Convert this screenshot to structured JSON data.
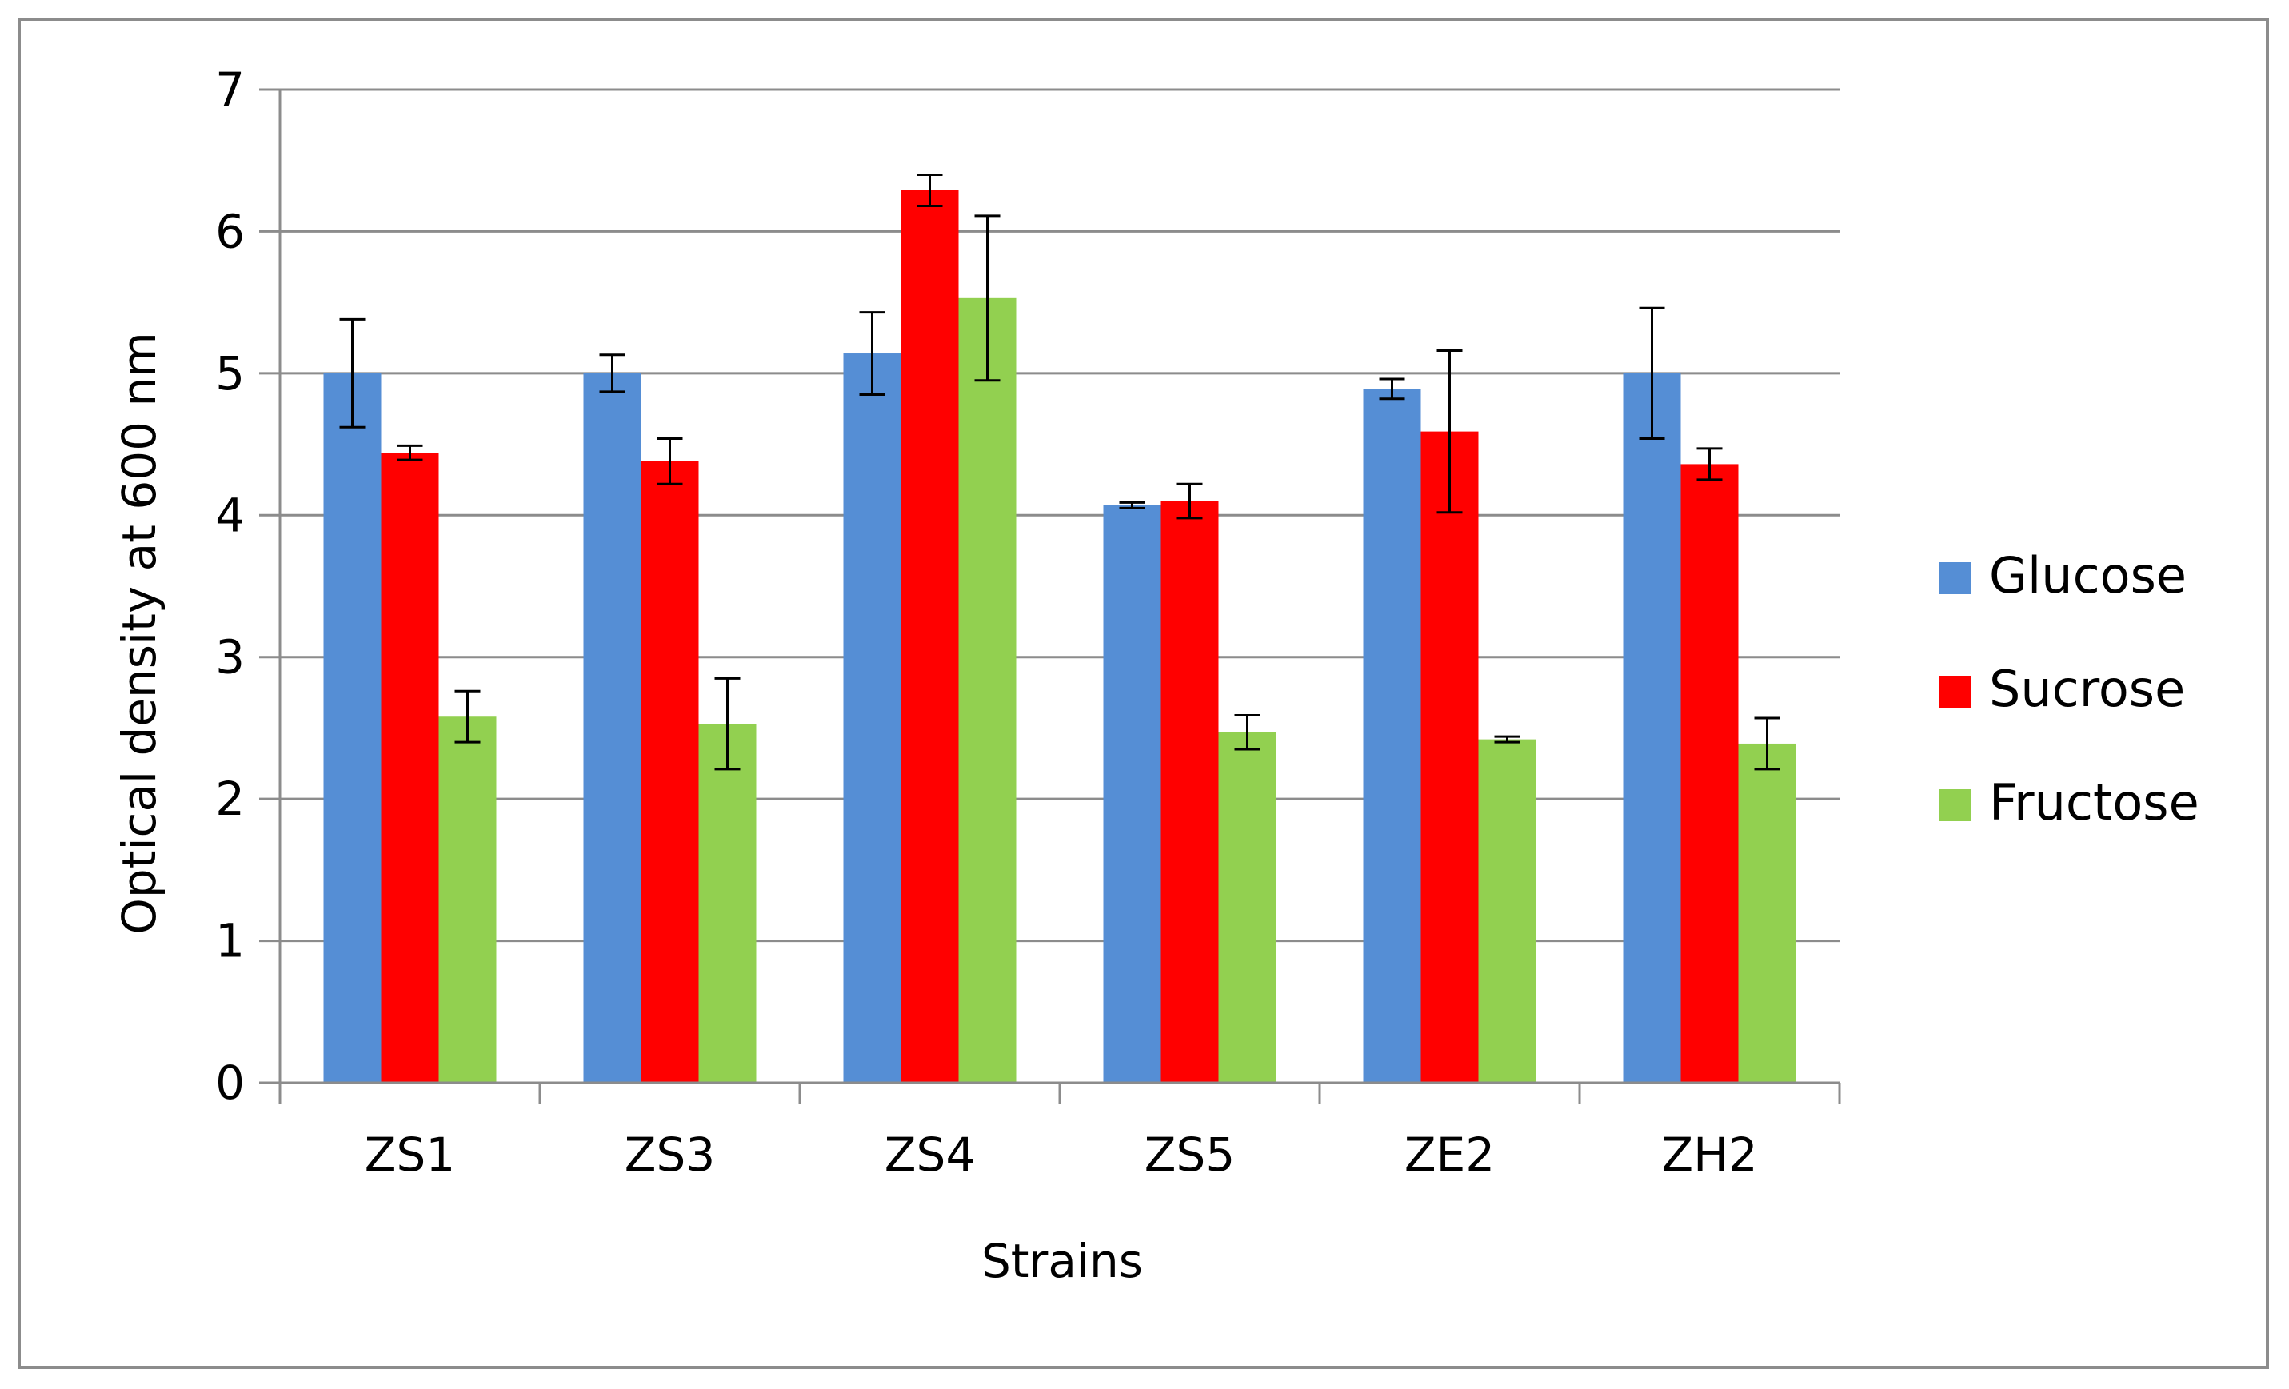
{
  "chart_data": {
    "type": "bar",
    "title": "",
    "xlabel": "Strains",
    "ylabel": "Optical density at 600 nm",
    "categories": [
      "ZS1",
      "ZS3",
      "ZS4",
      "ZS5",
      "ZE2",
      "ZH2"
    ],
    "series": [
      {
        "name": "Glucose",
        "color": "#558ED5",
        "values": [
          5.0,
          5.0,
          5.14,
          4.07,
          4.89,
          5.0
        ],
        "errors": [
          0.38,
          0.13,
          0.29,
          0.02,
          0.07,
          0.46
        ]
      },
      {
        "name": "Sucrose",
        "color": "#FF0000",
        "values": [
          4.44,
          4.38,
          6.29,
          4.1,
          4.59,
          4.36
        ],
        "errors": [
          0.05,
          0.16,
          0.11,
          0.12,
          0.57,
          0.11
        ]
      },
      {
        "name": "Fructose",
        "color": "#92D050",
        "values": [
          2.58,
          2.53,
          5.53,
          2.47,
          2.42,
          2.39
        ],
        "errors": [
          0.18,
          0.32,
          0.58,
          0.12,
          0.02,
          0.18
        ]
      }
    ],
    "ylim": [
      0,
      7
    ],
    "yticks": [
      0,
      1,
      2,
      3,
      4,
      5,
      6,
      7
    ],
    "grid": true,
    "legend_position": "right"
  }
}
